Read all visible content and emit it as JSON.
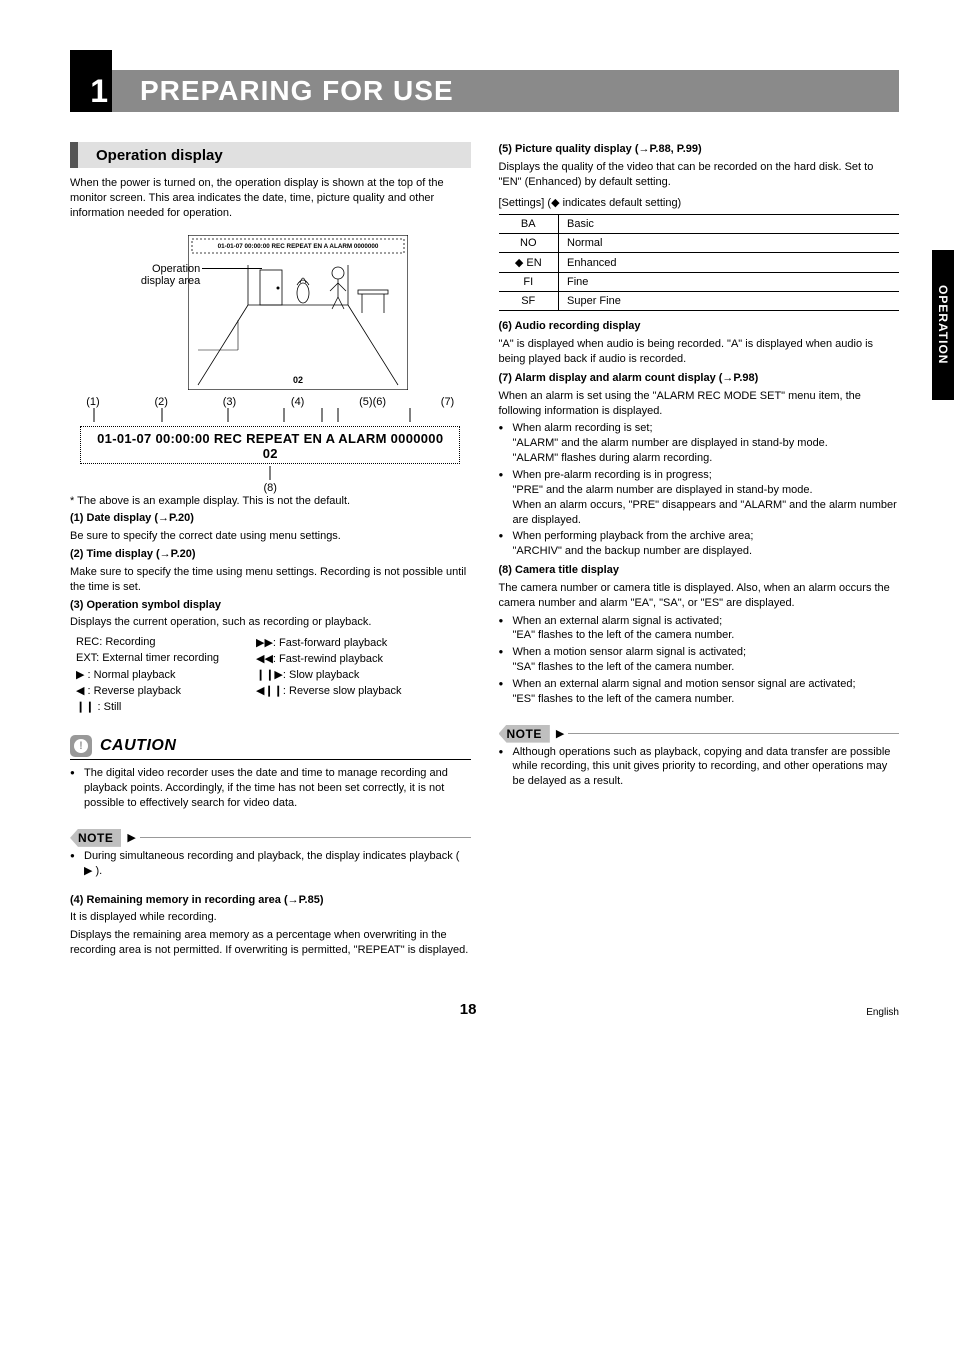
{
  "header": {
    "chapter_num": "1",
    "title": "PREPARING FOR USE"
  },
  "side_tab": "OPERATION",
  "left": {
    "section_title": "Operation display",
    "intro": "When the power is turned on, the operation display is shown at the top of the monitor screen. This area indicates the date, time, picture quality and other information needed for operation.",
    "op_label_l1": "Operation",
    "op_label_l2": "display area",
    "osd_text_small": "01-01-07 00:00:00 REC REPEAT EN A ALARM 0000000",
    "osd_cam_small": "02",
    "callouts_top": [
      "(1)",
      "(2)",
      "(3)",
      "(4)",
      "(5)(6)",
      "(7)"
    ],
    "osd_large_l1": "01-01-07 00:00:00 REC REPEAT EN A ALARM 0000000",
    "osd_large_l2": "02",
    "callout_bottom": "(8)",
    "example_note": "* The above is an example display. This is not the default.",
    "item1_h": "(1)  Date display (→P.20)",
    "item1_p": "Be sure to specify the correct date using menu settings.",
    "item2_h": "(2)  Time display (→P.20)",
    "item2_p": "Make sure to specify the time using menu settings. Recording is not possible until the time is set.",
    "item3_h": "(3)  Operation symbol display",
    "item3_p": "Displays the current operation, such as recording or playback.",
    "symbols": [
      [
        "REC: Recording",
        "▶▶: Fast-forward playback"
      ],
      [
        "EXT: External timer recording",
        "◀◀: Fast-rewind playback"
      ],
      [
        "▶ : Normal playback",
        "❙❙▶: Slow playback"
      ],
      [
        "◀ : Reverse playback",
        "◀❙❙: Reverse slow playback"
      ],
      [
        "❙❙ : Still",
        ""
      ]
    ],
    "caution_title": "CAUTION",
    "caution_text": "The digital video recorder uses the date and time to manage recording and playback points. Accordingly, if the time has not been set correctly, it is not possible to effectively search for video data.",
    "note_label": "NOTE",
    "note1_text": "During simultaneous recording and playback, the display indicates playback ( ▶ ).",
    "item4_h": "(4)  Remaining memory in recording area (→P.85)",
    "item4_p1": "It is displayed while recording.",
    "item4_p2": "Displays the remaining area memory as a percentage when overwriting in the recording area is not permitted. If overwriting is permitted, \"REPEAT\" is displayed."
  },
  "right": {
    "item5_h": "(5)  Picture quality display (→P.88, P.99)",
    "item5_p": "Displays the quality of the video that can be recorded on the hard disk. Set to \"EN\" (Enhanced) by default setting.",
    "settings_label": "[Settings] (◆ indicates default setting)",
    "settings_rows": [
      {
        "code": "BA",
        "label": "Basic",
        "default": false
      },
      {
        "code": "NO",
        "label": "Normal",
        "default": false
      },
      {
        "code": "EN",
        "label": "Enhanced",
        "default": true
      },
      {
        "code": "FI",
        "label": "Fine",
        "default": false
      },
      {
        "code": "SF",
        "label": "Super Fine",
        "default": false
      }
    ],
    "item6_h": "(6)  Audio recording display",
    "item6_p": "\"A\" is displayed when audio is being recorded. \"A\" is displayed when audio is being played back if audio is recorded.",
    "item7_h": "(7)  Alarm display and alarm count display (→P.98)",
    "item7_p": "When an alarm is set using the \"ALARM REC MODE SET\" menu item, the following information is displayed.",
    "item7_bullets": [
      {
        "head": "When alarm recording is set;",
        "lines": [
          "\"ALARM\" and the alarm number are displayed in stand-by mode.",
          "\"ALARM\" flashes during alarm recording."
        ]
      },
      {
        "head": "When pre-alarm recording is in progress;",
        "lines": [
          "\"PRE\" and the alarm number are displayed in stand-by mode.",
          "When an alarm occurs, \"PRE\" disappears and \"ALARM\" and the alarm number are displayed."
        ]
      },
      {
        "head": "When performing playback from the archive area;",
        "lines": [
          "\"ARCHIV\" and the backup number are displayed."
        ]
      }
    ],
    "item8_h": "(8)  Camera title display",
    "item8_p": "The camera number or camera title is displayed. Also, when an alarm occurs the camera number and alarm \"EA\", \"SA\", or \"ES\" are displayed.",
    "item8_bullets": [
      {
        "head": "When an external alarm signal is activated;",
        "lines": [
          "\"EA\" flashes to the left of the camera number."
        ]
      },
      {
        "head": "When a motion sensor alarm signal is activated;",
        "lines": [
          "\"SA\" flashes to the left of the camera number."
        ]
      },
      {
        "head": "When an external alarm signal and motion sensor signal are activated;",
        "lines": [
          "\"ES\" flashes to the left of the camera number."
        ]
      }
    ],
    "note_label": "NOTE",
    "note2_text": "Although operations such as playback, copying and data transfer are possible while recording, this unit gives priority to recording, and other operations may be delayed as a result."
  },
  "footer": {
    "page_num": "18",
    "lang": "English"
  }
}
